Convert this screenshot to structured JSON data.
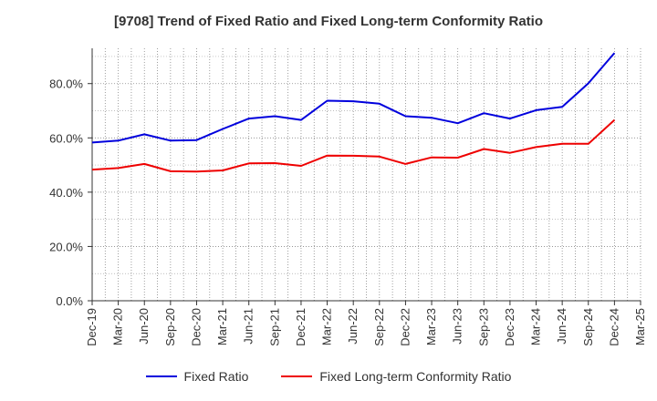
{
  "chart_data": {
    "type": "line",
    "title": "[9708]  Trend of Fixed Ratio and Fixed Long-term Conformity Ratio",
    "xlabel": "",
    "ylabel": "",
    "ylim": [
      0,
      93
    ],
    "yticks": [
      "0.0%",
      "20.0%",
      "40.0%",
      "60.0%",
      "80.0%"
    ],
    "ytick_values": [
      0,
      20,
      40,
      60,
      80
    ],
    "categories": [
      "Dec-19",
      "Mar-20",
      "Jun-20",
      "Sep-20",
      "Dec-20",
      "Mar-21",
      "Jun-21",
      "Sep-21",
      "Dec-21",
      "Mar-22",
      "Jun-22",
      "Sep-22",
      "Dec-22",
      "Mar-23",
      "Jun-23",
      "Sep-23",
      "Dec-23",
      "Mar-24",
      "Jun-24",
      "Sep-24",
      "Dec-24",
      "Mar-25"
    ],
    "grid": true,
    "legend_position": "bottom",
    "series": [
      {
        "name": "Fixed Ratio",
        "color": "#0000dd",
        "values": [
          58.3,
          59.0,
          61.3,
          59.0,
          59.2,
          63.3,
          67.1,
          68.0,
          66.6,
          73.7,
          73.5,
          72.6,
          68.0,
          67.4,
          65.4,
          69.1,
          67.1,
          70.2,
          71.4,
          80.1,
          91.3,
          null
        ]
      },
      {
        "name": "Fixed Long-term Conformity Ratio",
        "color": "#ee0000",
        "values": [
          48.3,
          48.9,
          50.4,
          47.7,
          47.6,
          48.0,
          50.6,
          50.7,
          49.7,
          53.5,
          53.4,
          53.1,
          50.4,
          52.8,
          52.7,
          55.9,
          54.5,
          56.6,
          57.8,
          57.8,
          66.6,
          null
        ]
      }
    ]
  }
}
